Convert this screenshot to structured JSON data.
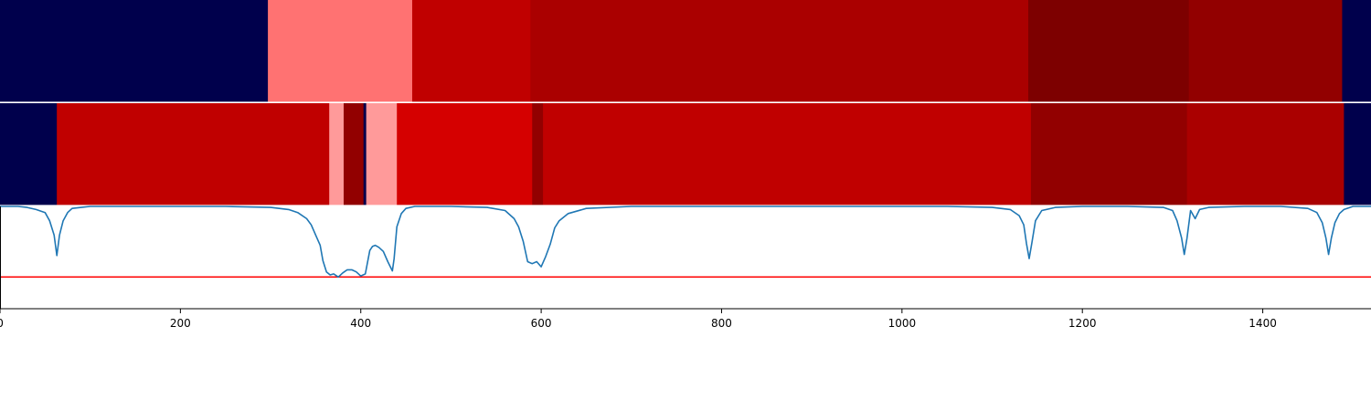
{
  "chart_data": {
    "type": "heatmap",
    "x_range": [
      0,
      1520
    ],
    "x_ticks": [
      0,
      200,
      400,
      600,
      800,
      1000,
      1200,
      1400
    ],
    "x_tick_labels": [
      "0",
      "200",
      "400",
      "600",
      "800",
      "1000",
      "1200",
      "1400"
    ],
    "tracks": [
      {
        "segments": [
          {
            "start": 0,
            "end": 297,
            "color": "#00004c"
          },
          {
            "start": 297,
            "end": 457,
            "color": "#ff7272"
          },
          {
            "start": 457,
            "end": 588,
            "color": "#c00000"
          },
          {
            "start": 588,
            "end": 1140,
            "color": "#aa0000"
          },
          {
            "start": 1140,
            "end": 1318,
            "color": "#7d0000"
          },
          {
            "start": 1318,
            "end": 1488,
            "color": "#920000"
          },
          {
            "start": 1488,
            "end": 1520,
            "color": "#00004c"
          }
        ]
      },
      {
        "segments": [
          {
            "start": 0,
            "end": 63,
            "color": "#00004c"
          },
          {
            "start": 63,
            "end": 365,
            "color": "#c00000"
          },
          {
            "start": 365,
            "end": 381,
            "color": "#ff9a9a"
          },
          {
            "start": 381,
            "end": 403,
            "color": "#920000"
          },
          {
            "start": 403,
            "end": 406,
            "color": "#00004c"
          },
          {
            "start": 406,
            "end": 440,
            "color": "#ff9a9a"
          },
          {
            "start": 440,
            "end": 590,
            "color": "#d50000"
          },
          {
            "start": 590,
            "end": 602,
            "color": "#920000"
          },
          {
            "start": 602,
            "end": 1143,
            "color": "#c00000"
          },
          {
            "start": 1143,
            "end": 1316,
            "color": "#920000"
          },
          {
            "start": 1316,
            "end": 1490,
            "color": "#aa0000"
          },
          {
            "start": 1490,
            "end": 1520,
            "color": "#00004c"
          }
        ]
      }
    ],
    "line_panel": {
      "ylim": [
        0,
        1
      ],
      "threshold": 0.31,
      "threshold_color": "#ff0000",
      "line_color": "#1f77b4",
      "x": [
        0,
        10,
        20,
        30,
        40,
        50,
        55,
        60,
        63,
        66,
        70,
        75,
        80,
        90,
        100,
        120,
        150,
        200,
        250,
        300,
        320,
        330,
        340,
        345,
        350,
        355,
        358,
        362,
        366,
        370,
        375,
        380,
        385,
        390,
        395,
        400,
        405,
        410,
        413,
        416,
        420,
        425,
        430,
        435,
        437,
        440,
        445,
        450,
        460,
        500,
        540,
        560,
        570,
        575,
        580,
        585,
        590,
        595,
        600,
        605,
        610,
        615,
        620,
        630,
        650,
        700,
        800,
        900,
        1000,
        1050,
        1100,
        1120,
        1130,
        1135,
        1138,
        1141,
        1144,
        1148,
        1155,
        1170,
        1200,
        1250,
        1290,
        1300,
        1305,
        1310,
        1313,
        1316,
        1320,
        1325,
        1330,
        1340,
        1380,
        1420,
        1450,
        1460,
        1466,
        1470,
        1473,
        1476,
        1480,
        1485,
        1490,
        1500,
        1520
      ],
      "y": [
        1.0,
        1.0,
        1.0,
        0.99,
        0.97,
        0.94,
        0.86,
        0.72,
        0.52,
        0.72,
        0.86,
        0.94,
        0.98,
        0.99,
        1.0,
        1.0,
        1.0,
        1.0,
        1.0,
        0.99,
        0.97,
        0.94,
        0.88,
        0.82,
        0.72,
        0.62,
        0.47,
        0.36,
        0.33,
        0.34,
        0.31,
        0.35,
        0.38,
        0.38,
        0.36,
        0.32,
        0.34,
        0.57,
        0.61,
        0.62,
        0.6,
        0.56,
        0.46,
        0.37,
        0.49,
        0.8,
        0.93,
        0.98,
        1.0,
        1.0,
        0.99,
        0.96,
        0.88,
        0.8,
        0.66,
        0.46,
        0.44,
        0.46,
        0.41,
        0.51,
        0.63,
        0.79,
        0.86,
        0.93,
        0.98,
        1.0,
        1.0,
        1.0,
        1.0,
        1.0,
        0.99,
        0.97,
        0.91,
        0.82,
        0.64,
        0.49,
        0.64,
        0.86,
        0.96,
        0.99,
        1.0,
        1.0,
        0.99,
        0.96,
        0.86,
        0.69,
        0.53,
        0.69,
        0.96,
        0.88,
        0.97,
        0.99,
        1.0,
        1.0,
        0.98,
        0.94,
        0.84,
        0.69,
        0.53,
        0.69,
        0.84,
        0.93,
        0.97,
        1.0,
        1.0
      ]
    }
  }
}
